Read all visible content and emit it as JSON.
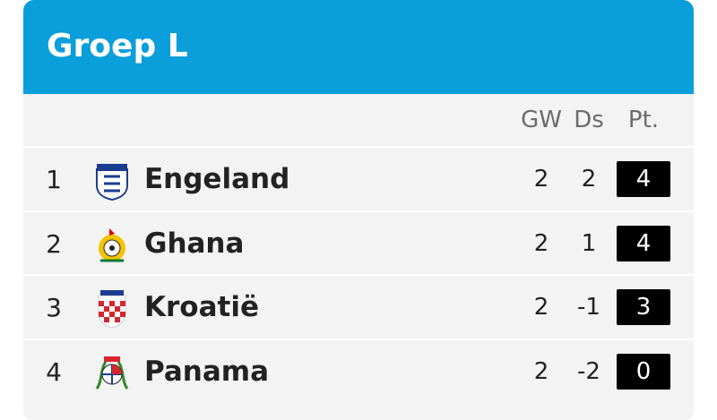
{
  "header": {
    "title": "Groep L"
  },
  "table": {
    "columns": [
      "GW",
      "Ds",
      "Pt."
    ],
    "rows": [
      [
        1,
        "Engeland",
        2,
        2,
        4
      ],
      [
        2,
        "Ghana",
        2,
        1,
        4
      ],
      [
        3,
        "Kroatië",
        2,
        -1,
        3
      ],
      [
        4,
        "Panama",
        2,
        -2,
        0
      ]
    ]
  }
}
